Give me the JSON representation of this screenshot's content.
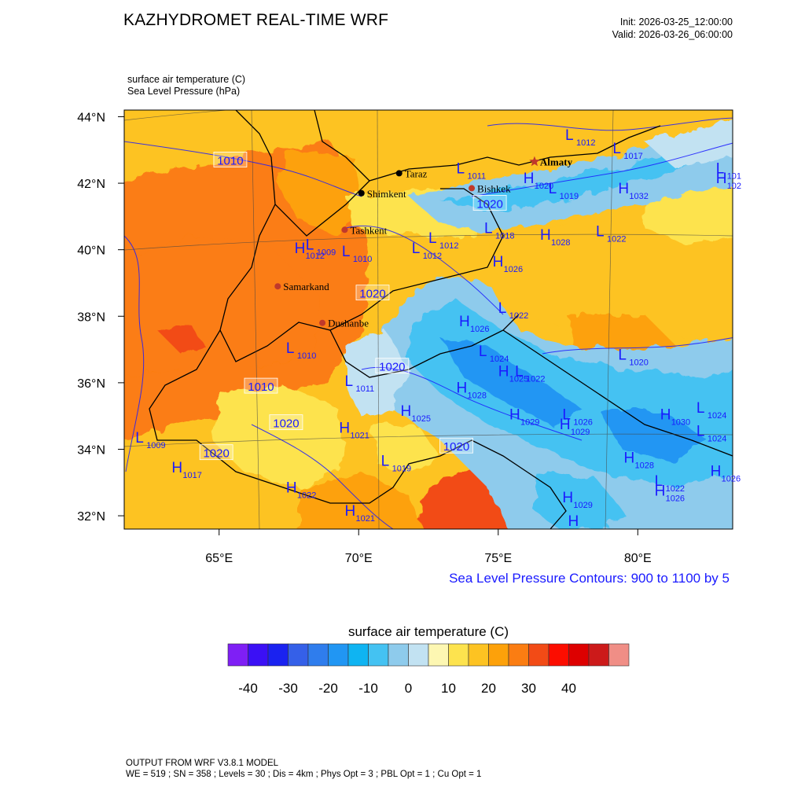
{
  "header": {
    "title": "KAZHYDROMET REAL-TIME WRF",
    "init": "Init: 2026-03-25_12:00:00",
    "valid": "Valid: 2026-03-26_06:00:00"
  },
  "fields": {
    "temperature_label": "surface air temperature   (C)",
    "pressure_label": "Sea Level Pressure   (hPa)"
  },
  "map": {
    "lon_range": [
      61.6,
      83.4
    ],
    "lat_range": [
      31.6,
      44.2
    ],
    "lon_ticks": [
      {
        "value": 65,
        "label": "65°E"
      },
      {
        "value": 70,
        "label": "70°E"
      },
      {
        "value": 75,
        "label": "75°E"
      },
      {
        "value": 80,
        "label": "80°E"
      }
    ],
    "lat_ticks": [
      {
        "value": 44,
        "label": "44°N"
      },
      {
        "value": 42,
        "label": "42°N"
      },
      {
        "value": 40,
        "label": "40°N"
      },
      {
        "value": 38,
        "label": "38°N"
      },
      {
        "value": 36,
        "label": "36°N"
      },
      {
        "value": 34,
        "label": "34°N"
      },
      {
        "value": 32,
        "label": "32°N"
      }
    ],
    "cities": [
      {
        "name": "Almaty",
        "lon": 76.3,
        "lat": 42.65,
        "marker": "star",
        "color": "#c0392b"
      },
      {
        "name": "Taraz",
        "lon": 71.45,
        "lat": 42.3,
        "marker": "dot",
        "color": "#000000"
      },
      {
        "name": "Bishkek",
        "lon": 74.05,
        "lat": 41.85,
        "marker": "dot",
        "color": "#c0392b"
      },
      {
        "name": "Shimkent",
        "lon": 70.1,
        "lat": 41.7,
        "marker": "dot",
        "color": "#000000"
      },
      {
        "name": "Tashkent",
        "lon": 69.5,
        "lat": 40.6,
        "marker": "dot",
        "color": "#c0392b"
      },
      {
        "name": "Samarkand",
        "lon": 67.1,
        "lat": 38.9,
        "marker": "dot",
        "color": "#c0392b"
      },
      {
        "name": "Dushanbe",
        "lon": 68.7,
        "lat": 37.8,
        "marker": "dot",
        "color": "#c0392b"
      }
    ],
    "pressure_centers": [
      {
        "type": "L",
        "value": "1012",
        "lon": 77.4,
        "lat": 43.3
      },
      {
        "type": "L",
        "value": "1017",
        "lon": 79.1,
        "lat": 42.9
      },
      {
        "type": "L",
        "value": "1011",
        "lon": 73.5,
        "lat": 42.3
      },
      {
        "type": "H",
        "value": "1020",
        "lon": 75.9,
        "lat": 42.0
      },
      {
        "type": "L",
        "value": "1019",
        "lon": 76.8,
        "lat": 41.7
      },
      {
        "type": "H",
        "value": "1032",
        "lon": 79.3,
        "lat": 41.7
      },
      {
        "type": "L",
        "value": "101",
        "lon": 82.8,
        "lat": 42.3
      },
      {
        "type": "H",
        "value": "102",
        "lon": 82.8,
        "lat": 42.0
      },
      {
        "type": "L",
        "value": "1018",
        "lon": 74.5,
        "lat": 40.5
      },
      {
        "type": "H",
        "value": "1028",
        "lon": 76.5,
        "lat": 40.3
      },
      {
        "type": "L",
        "value": "1022",
        "lon": 78.5,
        "lat": 40.4
      },
      {
        "type": "L",
        "value": "1012",
        "lon": 72.5,
        "lat": 40.2
      },
      {
        "type": "L",
        "value": "1012",
        "lon": 71.9,
        "lat": 39.9
      },
      {
        "type": "H",
        "value": "1012",
        "lon": 67.7,
        "lat": 39.9
      },
      {
        "type": "L",
        "value": "1009",
        "lon": 68.1,
        "lat": 40.0
      },
      {
        "type": "L",
        "value": "1010",
        "lon": 69.4,
        "lat": 39.8
      },
      {
        "type": "H",
        "value": "1026",
        "lon": 74.8,
        "lat": 39.5
      },
      {
        "type": "L",
        "value": "1022",
        "lon": 75.0,
        "lat": 38.1
      },
      {
        "type": "H",
        "value": "1026",
        "lon": 73.6,
        "lat": 37.7
      },
      {
        "type": "L",
        "value": "1010",
        "lon": 67.4,
        "lat": 36.9
      },
      {
        "type": "L",
        "value": "1024",
        "lon": 74.3,
        "lat": 36.8
      },
      {
        "type": "L",
        "value": "1020",
        "lon": 79.3,
        "lat": 36.7
      },
      {
        "type": "H",
        "value": "1025",
        "lon": 75.0,
        "lat": 36.2
      },
      {
        "type": "L",
        "value": "1022",
        "lon": 75.6,
        "lat": 36.2
      },
      {
        "type": "L",
        "value": "1011",
        "lon": 69.5,
        "lat": 35.9
      },
      {
        "type": "H",
        "value": "1028",
        "lon": 73.5,
        "lat": 35.7
      },
      {
        "type": "H",
        "value": "1025",
        "lon": 71.5,
        "lat": 35.0
      },
      {
        "type": "H",
        "value": "1029",
        "lon": 75.4,
        "lat": 34.9
      },
      {
        "type": "L",
        "value": "1026",
        "lon": 77.3,
        "lat": 34.9
      },
      {
        "type": "H",
        "value": "1029",
        "lon": 77.2,
        "lat": 34.6
      },
      {
        "type": "H",
        "value": "1030",
        "lon": 80.8,
        "lat": 34.9
      },
      {
        "type": "L",
        "value": "1024",
        "lon": 82.1,
        "lat": 35.1
      },
      {
        "type": "L",
        "value": "1024",
        "lon": 82.1,
        "lat": 34.4
      },
      {
        "type": "H",
        "value": "1021",
        "lon": 69.3,
        "lat": 34.5
      },
      {
        "type": "L",
        "value": "1009",
        "lon": 62.0,
        "lat": 34.2
      },
      {
        "type": "L",
        "value": "1019",
        "lon": 70.8,
        "lat": 33.5
      },
      {
        "type": "H",
        "value": "1028",
        "lon": 79.5,
        "lat": 33.6
      },
      {
        "type": "H",
        "value": "1017",
        "lon": 63.3,
        "lat": 33.3
      },
      {
        "type": "H",
        "value": "1026",
        "lon": 82.6,
        "lat": 33.2
      },
      {
        "type": "L",
        "value": "1022",
        "lon": 80.6,
        "lat": 32.9
      },
      {
        "type": "H",
        "value": "1026",
        "lon": 80.6,
        "lat": 32.6
      },
      {
        "type": "H",
        "value": "1022",
        "lon": 67.4,
        "lat": 32.7
      },
      {
        "type": "H",
        "value": "1029",
        "lon": 77.3,
        "lat": 32.4
      },
      {
        "type": "H",
        "value": "1021",
        "lon": 69.5,
        "lat": 32.0
      },
      {
        "type": "H",
        "value": "",
        "lon": 77.5,
        "lat": 31.7
      }
    ],
    "isobar_labels": [
      {
        "value": "1010",
        "lon": 65.4,
        "lat": 42.7
      },
      {
        "value": "1020",
        "lon": 74.7,
        "lat": 41.4
      },
      {
        "value": "1020",
        "lon": 70.5,
        "lat": 38.7
      },
      {
        "value": "1020",
        "lon": 71.2,
        "lat": 36.5
      },
      {
        "value": "1010",
        "lon": 66.5,
        "lat": 35.9
      },
      {
        "value": "1020",
        "lon": 67.4,
        "lat": 34.8
      },
      {
        "value": "1020",
        "lon": 64.9,
        "lat": 33.9
      },
      {
        "value": "1020",
        "lon": 73.5,
        "lat": 34.1
      }
    ]
  },
  "contour_note": "Sea Level Pressure Contours: 900 to 1100 by 5",
  "colorbar": {
    "title": "surface air temperature  (C)",
    "colors": [
      "#7f1ff5",
      "#3b10f5",
      "#1a22f0",
      "#3560e8",
      "#2f7ded",
      "#2196f3",
      "#0fb4f2",
      "#44c2f2",
      "#8ecbec",
      "#c2e2f2",
      "#fdf7b2",
      "#fde34e",
      "#fdc322",
      "#fda10a",
      "#fb7d12",
      "#f24b16",
      "#fc0d00",
      "#dd0000",
      "#cc1a1a",
      "#f08e86"
    ],
    "ticks": [
      {
        "value": -40,
        "label": "-40"
      },
      {
        "value": -30,
        "label": "-30"
      },
      {
        "value": -20,
        "label": "-20"
      },
      {
        "value": -10,
        "label": "-10"
      },
      {
        "value": 0,
        "label": "0"
      },
      {
        "value": 10,
        "label": "10"
      },
      {
        "value": 20,
        "label": "20"
      },
      {
        "value": 30,
        "label": "30"
      },
      {
        "value": 40,
        "label": "40"
      }
    ]
  },
  "footer": {
    "line1": "OUTPUT FROM WRF V3.8.1 MODEL",
    "line2": "WE = 519 ; SN = 358 ; Levels = 30 ; Dis = 4km ; Phys Opt = 3 ; PBL Opt = 1 ; Cu Opt = 1"
  }
}
